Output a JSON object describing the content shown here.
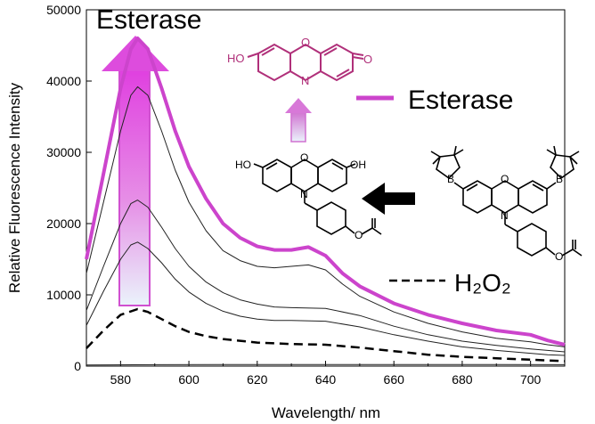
{
  "colors": {
    "magenta": "#cc44cc",
    "structure_magenta": "#b0307a",
    "gradient_top": "#e040e0",
    "gradient_bottom": "#eaf3fb",
    "black": "#000000",
    "gray": "#444444"
  },
  "labels": {
    "top_title": "Esterase",
    "legend_esterase": "Esterase",
    "legend_h2o2": "H₂O₂",
    "atom_HO": "HO",
    "atom_OH": "OH",
    "atom_O": "O",
    "atom_N": "N",
    "atom_B": "B"
  },
  "chart_data": {
    "type": "line",
    "title": "",
    "xlabel": "Wavelength/ nm",
    "ylabel": "Relative Fluorescence Intensity",
    "xlim": [
      570,
      710
    ],
    "ylim": [
      0,
      50000
    ],
    "xticks": [
      "580",
      "600",
      "620",
      "640",
      "660",
      "680",
      "700"
    ],
    "yticks": [
      "0",
      "10000",
      "20000",
      "30000",
      "40000",
      "50000"
    ],
    "grid": false,
    "series": [
      {
        "name": "Esterase",
        "style": "thick-magenta",
        "x": [
          570,
          575,
          580,
          583,
          585,
          588,
          592,
          596,
          600,
          605,
          610,
          615,
          620,
          625,
          630,
          635,
          640,
          645,
          650,
          660,
          670,
          680,
          690,
          700,
          705,
          710
        ],
        "y": [
          15000,
          27000,
          39000,
          44500,
          46000,
          44500,
          39000,
          33000,
          28000,
          23500,
          20000,
          18000,
          16800,
          16300,
          16300,
          16700,
          15500,
          13000,
          11200,
          8800,
          7200,
          6000,
          5000,
          4400,
          3600,
          3000
        ]
      },
      {
        "name": "",
        "style": "thin",
        "x": [
          570,
          575,
          580,
          583,
          585,
          588,
          592,
          596,
          600,
          605,
          610,
          615,
          620,
          625,
          630,
          635,
          640,
          645,
          650,
          660,
          670,
          680,
          690,
          700,
          705,
          710
        ],
        "y": [
          13000,
          23000,
          33000,
          38000,
          39200,
          38000,
          33000,
          27500,
          23000,
          19000,
          16200,
          14800,
          14000,
          13800,
          14000,
          14200,
          13500,
          11500,
          9800,
          7600,
          6000,
          4800,
          3900,
          3400,
          3000,
          2700
        ]
      },
      {
        "name": "",
        "style": "thin",
        "x": [
          570,
          575,
          580,
          583,
          585,
          588,
          592,
          596,
          600,
          605,
          610,
          615,
          620,
          625,
          630,
          640,
          650,
          660,
          670,
          680,
          690,
          700,
          705,
          710
        ],
        "y": [
          7800,
          14000,
          20000,
          22800,
          23300,
          22300,
          19500,
          16500,
          14000,
          11800,
          10300,
          9300,
          8700,
          8300,
          8200,
          8100,
          7100,
          5600,
          4400,
          3500,
          2900,
          2400,
          2200,
          2000
        ]
      },
      {
        "name": "",
        "style": "thin",
        "x": [
          570,
          575,
          580,
          583,
          585,
          588,
          592,
          596,
          600,
          605,
          610,
          615,
          620,
          625,
          630,
          640,
          650,
          660,
          670,
          680,
          690,
          700,
          705,
          710
        ],
        "y": [
          5700,
          10500,
          15000,
          17000,
          17400,
          16500,
          14500,
          12200,
          10400,
          8800,
          7700,
          7000,
          6600,
          6400,
          6400,
          6300,
          5500,
          4400,
          3500,
          2700,
          2200,
          1800,
          1600,
          1500
        ]
      },
      {
        "name": "H₂O₂",
        "style": "dashed",
        "x": [
          570,
          575,
          580,
          585,
          588,
          592,
          596,
          600,
          605,
          610,
          620,
          630,
          640,
          650,
          660,
          670,
          680,
          690,
          700,
          705,
          710
        ],
        "y": [
          2500,
          5000,
          7200,
          8000,
          7600,
          6600,
          5600,
          4800,
          4200,
          3800,
          3300,
          3100,
          3000,
          2600,
          2100,
          1600,
          1300,
          1100,
          900,
          800,
          700
        ]
      },
      {
        "name": "",
        "style": "thin-flat",
        "x": [
          570,
          590,
          610,
          630,
          650,
          670,
          690,
          710
        ],
        "y": [
          150,
          200,
          220,
          230,
          230,
          220,
          210,
          200
        ]
      }
    ]
  }
}
